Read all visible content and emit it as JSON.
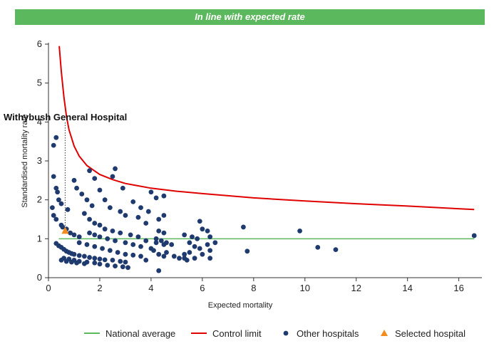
{
  "banner": {
    "text": "In line with expected rate",
    "color": "#5cb85c"
  },
  "chart_data": {
    "type": "scatter",
    "title": "",
    "xlabel": "Expected mortality",
    "ylabel": "Standardised mortality rate",
    "xlim": [
      0,
      16.9
    ],
    "ylim": [
      0,
      6
    ],
    "x_ticks": [
      0,
      2,
      4,
      6,
      8,
      10,
      12,
      14,
      16
    ],
    "y_ticks": [
      0,
      1,
      2,
      3,
      4,
      5,
      6
    ],
    "grid": false,
    "legend_position": "bottom",
    "legend": [
      {
        "label": "National average",
        "kind": "line",
        "color": "#5cb85c"
      },
      {
        "label": "Control limit",
        "kind": "line",
        "color": "#e00000"
      },
      {
        "label": "Other hospitals",
        "kind": "dot",
        "color": "#1f3a6e"
      },
      {
        "label": "Selected hospital",
        "kind": "triangle",
        "color": "#f28c1c"
      }
    ],
    "national_average": {
      "x": [
        0.4,
        16.6
      ],
      "y": 1
    },
    "control_limit": {
      "x": [
        0.42,
        0.5,
        0.6,
        0.7,
        0.8,
        1,
        1.2,
        1.5,
        2,
        2.5,
        3,
        3.5,
        4,
        5,
        6,
        8,
        10,
        12,
        14,
        16.6
      ],
      "y": [
        5.95,
        5.3,
        4.65,
        4.15,
        3.8,
        3.38,
        3.12,
        2.88,
        2.65,
        2.52,
        2.42,
        2.36,
        2.3,
        2.22,
        2.16,
        2.05,
        1.97,
        1.9,
        1.84,
        1.75
      ]
    },
    "selected_hospital": {
      "name": "Withybush General Hospital",
      "x": 0.65,
      "y": 1.2,
      "color": "#f28c1c"
    },
    "other_hospitals": {
      "color": "#1f3a6e",
      "points": [
        [
          0.15,
          1.8
        ],
        [
          0.2,
          3.4
        ],
        [
          0.3,
          3.6
        ],
        [
          0.2,
          2.6
        ],
        [
          0.3,
          2.3
        ],
        [
          0.35,
          2.2
        ],
        [
          0.4,
          2
        ],
        [
          0.2,
          1.6
        ],
        [
          0.3,
          1.5
        ],
        [
          0.5,
          1.9
        ],
        [
          0.75,
          1.75
        ],
        [
          0.5,
          1.35
        ],
        [
          0.55,
          1.3
        ],
        [
          0.7,
          1.25
        ],
        [
          0.85,
          1.15
        ],
        [
          1,
          1.1
        ],
        [
          1.2,
          1.05
        ],
        [
          0.3,
          0.88
        ],
        [
          0.4,
          0.82
        ],
        [
          0.5,
          0.78
        ],
        [
          0.6,
          0.73
        ],
        [
          0.7,
          0.68
        ],
        [
          0.8,
          0.65
        ],
        [
          0.9,
          0.62
        ],
        [
          1,
          0.6
        ],
        [
          1.2,
          0.57
        ],
        [
          1.4,
          0.55
        ],
        [
          1.6,
          0.52
        ],
        [
          1.8,
          0.5
        ],
        [
          2,
          0.48
        ],
        [
          2.2,
          0.46
        ],
        [
          2.5,
          0.45
        ],
        [
          2.8,
          0.42
        ],
        [
          3,
          0.4
        ],
        [
          0.6,
          0.5
        ],
        [
          0.8,
          0.48
        ],
        [
          1,
          0.45
        ],
        [
          1.2,
          0.42
        ],
        [
          1.5,
          0.4
        ],
        [
          1.8,
          0.38
        ],
        [
          2,
          0.35
        ],
        [
          2.3,
          0.32
        ],
        [
          2.6,
          0.3
        ],
        [
          2.9,
          0.28
        ],
        [
          3.1,
          0.26
        ],
        [
          0.5,
          0.45
        ],
        [
          0.7,
          0.42
        ],
        [
          0.9,
          0.4
        ],
        [
          1.1,
          0.38
        ],
        [
          1.4,
          0.36
        ],
        [
          1,
          2.5
        ],
        [
          1.1,
          2.3
        ],
        [
          1.3,
          2.15
        ],
        [
          1.5,
          2
        ],
        [
          1.7,
          1.85
        ],
        [
          2,
          2.25
        ],
        [
          2.2,
          2
        ],
        [
          2.4,
          1.8
        ],
        [
          2.8,
          1.7
        ],
        [
          3,
          1.6
        ],
        [
          3.5,
          1.55
        ],
        [
          3.8,
          1.4
        ],
        [
          1.4,
          1.65
        ],
        [
          1.6,
          1.5
        ],
        [
          1.8,
          1.4
        ],
        [
          2,
          1.35
        ],
        [
          2.2,
          1.25
        ],
        [
          2.5,
          1.2
        ],
        [
          2.8,
          1.15
        ],
        [
          3.2,
          1.1
        ],
        [
          3.5,
          1.05
        ],
        [
          3.8,
          0.95
        ],
        [
          4.2,
          0.9
        ],
        [
          4.5,
          0.85
        ],
        [
          1.6,
          1.15
        ],
        [
          1.8,
          1.1
        ],
        [
          2,
          1.05
        ],
        [
          2.3,
          1
        ],
        [
          2.6,
          0.95
        ],
        [
          3,
          0.9
        ],
        [
          3.3,
          0.85
        ],
        [
          3.6,
          0.8
        ],
        [
          4,
          0.75
        ],
        [
          1.2,
          0.9
        ],
        [
          1.5,
          0.85
        ],
        [
          1.8,
          0.8
        ],
        [
          2.1,
          0.75
        ],
        [
          2.4,
          0.7
        ],
        [
          2.7,
          0.65
        ],
        [
          3,
          0.6
        ],
        [
          3.3,
          0.58
        ],
        [
          3.6,
          0.55
        ],
        [
          1.6,
          2.75
        ],
        [
          1.8,
          2.55
        ],
        [
          2.5,
          2.6
        ],
        [
          2.6,
          2.8
        ],
        [
          2.9,
          2.3
        ],
        [
          4,
          2.2
        ],
        [
          4.2,
          2.05
        ],
        [
          4.5,
          2.1
        ],
        [
          3.3,
          1.95
        ],
        [
          3.6,
          1.8
        ],
        [
          3.9,
          1.7
        ],
        [
          4.3,
          1.5
        ],
        [
          4.5,
          1.6
        ],
        [
          4.3,
          1.2
        ],
        [
          4.5,
          1.15
        ],
        [
          4.2,
          1
        ],
        [
          4.4,
          0.95
        ],
        [
          4.6,
          0.9
        ],
        [
          4.8,
          0.85
        ],
        [
          4.1,
          0.7
        ],
        [
          4.3,
          0.6
        ],
        [
          4.5,
          0.55
        ],
        [
          4.6,
          0.65
        ],
        [
          4.9,
          0.55
        ],
        [
          5.1,
          0.5
        ],
        [
          5.3,
          0.5
        ],
        [
          5.3,
          1.1
        ],
        [
          5.6,
          1.05
        ],
        [
          5.8,
          1
        ],
        [
          5.5,
          0.9
        ],
        [
          5.7,
          0.8
        ],
        [
          5.9,
          0.75
        ],
        [
          5.5,
          0.65
        ],
        [
          5.3,
          0.6
        ],
        [
          5.7,
          0.5
        ],
        [
          5.4,
          0.45
        ],
        [
          6,
          1.25
        ],
        [
          6.2,
          1.2
        ],
        [
          5.9,
          1.45
        ],
        [
          6.3,
          1.05
        ],
        [
          6.5,
          0.9
        ],
        [
          6.2,
          0.85
        ],
        [
          6.3,
          0.7
        ],
        [
          6,
          0.6
        ],
        [
          6.3,
          0.5
        ],
        [
          4.3,
          0.18
        ],
        [
          3.8,
          0.45
        ],
        [
          7.6,
          1.3
        ],
        [
          7.75,
          0.68
        ],
        [
          9.8,
          1.2
        ],
        [
          10.5,
          0.78
        ],
        [
          11.2,
          0.72
        ],
        [
          16.6,
          1.08
        ]
      ]
    }
  }
}
